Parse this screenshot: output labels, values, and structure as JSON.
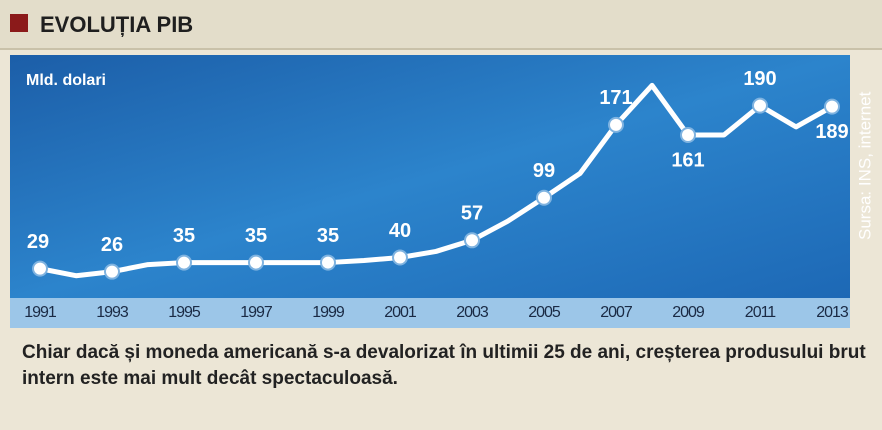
{
  "header": {
    "title": "EVOLUȚIA PIB"
  },
  "chart_data": {
    "type": "line",
    "y_label": "Mld. dolari",
    "source": "Sursa: INS, internet",
    "categories": [
      "1991",
      null,
      "1993",
      null,
      "1995",
      null,
      "1997",
      null,
      "1999",
      null,
      "2001",
      null,
      "2003",
      null,
      "2005",
      null,
      "2007",
      null,
      "2009",
      null,
      "2011",
      null,
      "2013"
    ],
    "values": [
      29,
      22,
      26,
      33,
      35,
      35,
      35,
      35,
      35,
      37,
      40,
      46,
      57,
      76,
      99,
      123,
      171,
      210,
      161,
      161,
      190,
      169,
      189
    ],
    "color": "#ffffff",
    "ylim": [
      0,
      240
    ]
  },
  "caption": "Chiar dacă și moneda americană s-a devalorizat în ultimii 25 de ani, creșterea produsului brut intern este mai mult decât spectaculoasă."
}
